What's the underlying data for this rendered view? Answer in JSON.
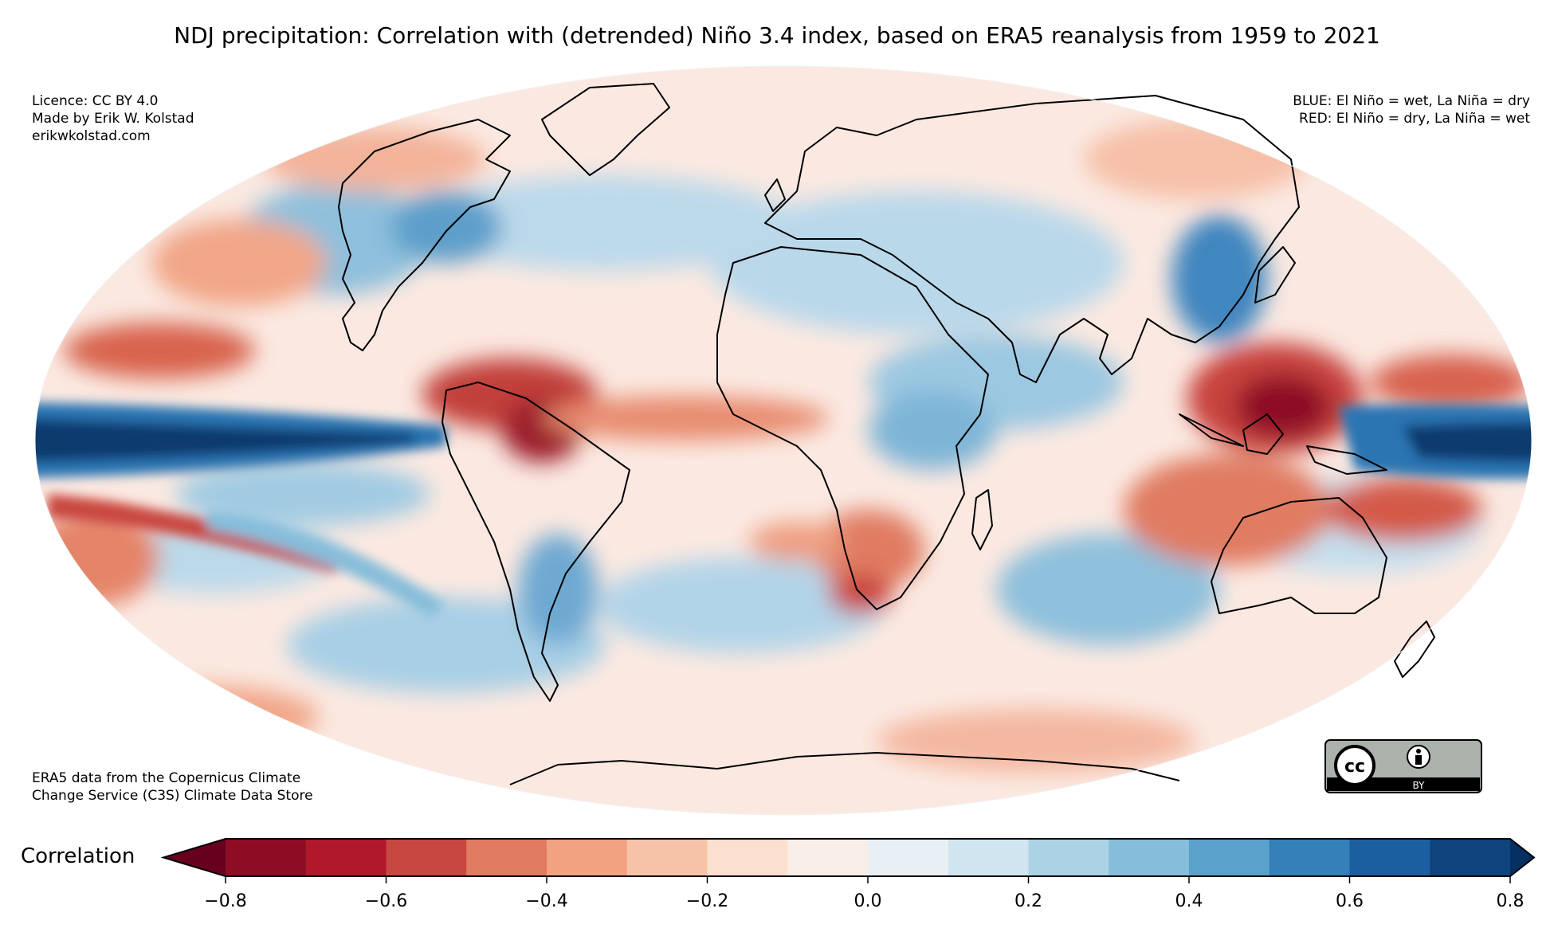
{
  "title": "NDJ precipitation: Correlation with (detrended) Niño 3.4 index, based on ERA5 reanalysis from 1959 to 2021",
  "credits": [
    "Licence: CC BY 4.0",
    "Made by Erik W. Kolstad",
    "erikwkolstad.com"
  ],
  "legend_text": [
    "BLUE: El Niño = wet, La Niña = dry",
    "RED: El Niño = dry, La Niña = wet"
  ],
  "source": [
    "ERA5 data from the Copernicus Climate",
    "Change Service (C3S) Climate Data Store"
  ],
  "badge": {
    "text": "BY",
    "logo_icon": "creative-commons-icon",
    "person_icon": "attribution-person-icon"
  },
  "colorbar": {
    "label": "Correlation",
    "ticks": [
      "−0.8",
      "−0.6",
      "−0.4",
      "−0.2",
      "0.0",
      "0.2",
      "0.4",
      "0.6",
      "0.8"
    ],
    "tick_values": [
      -0.8,
      -0.6,
      -0.4,
      -0.2,
      0.0,
      0.2,
      0.4,
      0.6,
      0.8
    ],
    "bounds": [
      -0.9,
      0.9
    ],
    "levels": [
      -0.8,
      -0.7,
      -0.6,
      -0.5,
      -0.4,
      -0.3,
      -0.2,
      -0.1,
      0.0,
      0.1,
      0.2,
      0.3,
      0.4,
      0.5,
      0.6,
      0.7,
      0.8
    ],
    "colors": [
      "#67001f",
      "#8e0d25",
      "#b2182b",
      "#c94741",
      "#e07b62",
      "#f1a280",
      "#f7c3a7",
      "#fbdfcf",
      "#f9eee7",
      "#e9f0f5",
      "#d1e5f0",
      "#acd2e5",
      "#86bdda",
      "#5aa2cc",
      "#3480b9",
      "#1c5fa1",
      "#10447c",
      "#053061"
    ],
    "extend": "both"
  }
}
